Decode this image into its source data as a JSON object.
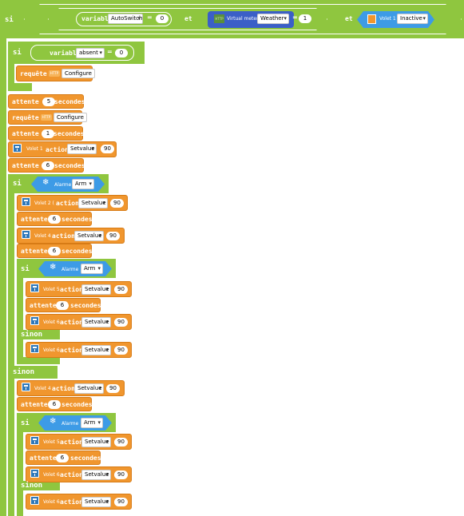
{
  "keywords": {
    "si": "si",
    "et": "et",
    "sinon": "sinon",
    "variable": "variable",
    "requete": "requête",
    "attente": "attente",
    "secondes": "secondes",
    "action": "action",
    "eq": "=",
    "http": "HTTP"
  },
  "top": {
    "variable1": "AutoSwitch",
    "value1": "0",
    "virtual_meter": "Virtual meter",
    "weather": "Weather",
    "value2": "1",
    "volet": "Volet 1",
    "state": "Inactive"
  },
  "si1": {
    "variable": "absent",
    "value": "0",
    "configure": "Configure"
  },
  "main": {
    "wait1": "5",
    "configure": "Configure",
    "wait2": "1",
    "volet1": "Volet 1",
    "setvalue": "Setvalue",
    "val90": "90",
    "wait3": "6",
    "alarm": "Alarme",
    "arm": "Arm",
    "volet2": "Volet 2 (",
    "volet4": "Volet 4",
    "volet5": "Volet 5",
    "volet6": "Volet 6"
  }
}
